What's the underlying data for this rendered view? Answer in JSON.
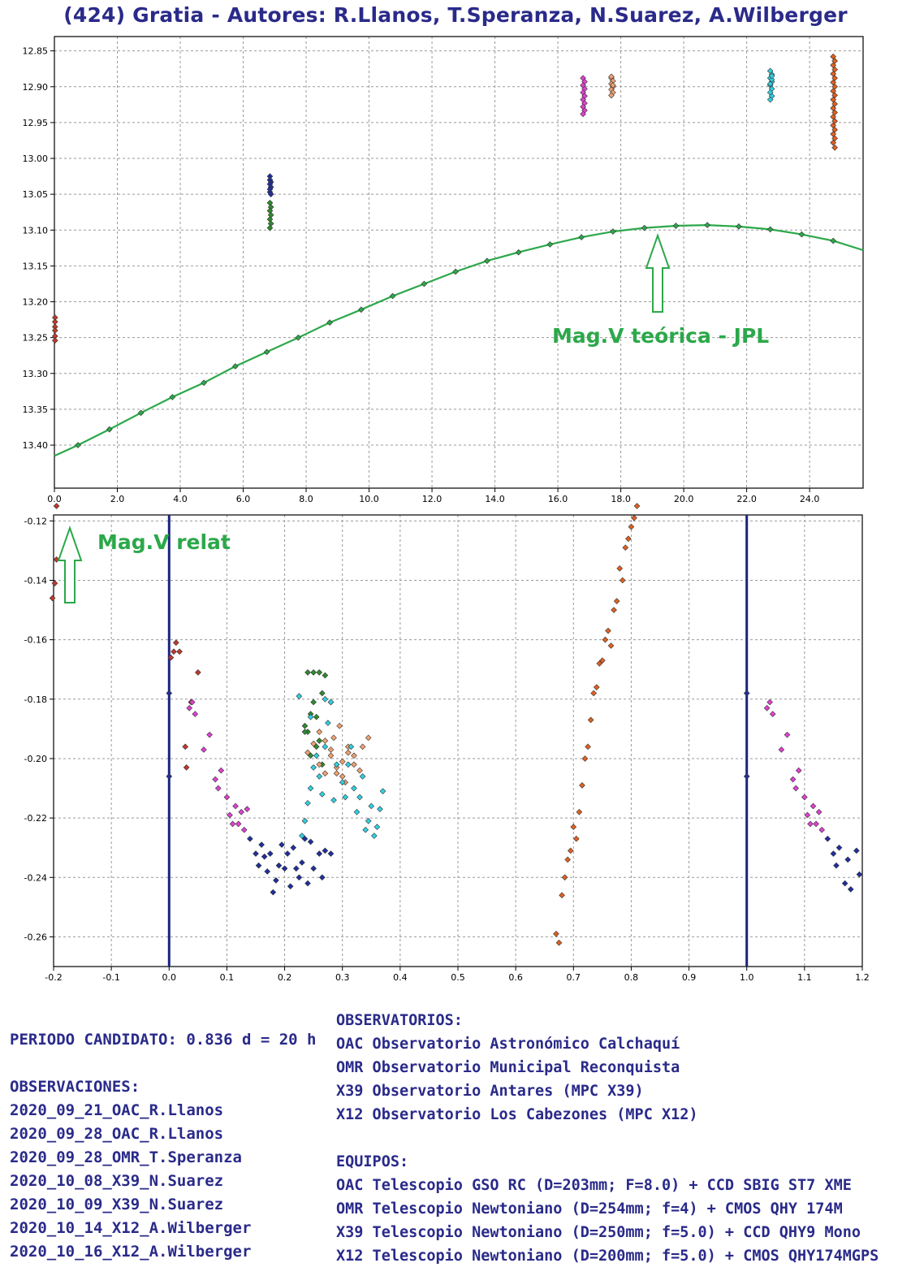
{
  "title": "(424) Gratia - Autores: R.Llanos, T.Speranza, N.Suarez, A.Wilberger",
  "chart_data": [
    {
      "type": "scatter",
      "title": "Mag.V teórica - JPL",
      "xlabel": "",
      "ylabel": "",
      "xlim": [
        0,
        25.7
      ],
      "ylim": [
        12.83,
        13.46
      ],
      "y_inverted": true,
      "xticks": [
        0,
        2,
        4,
        6,
        8,
        10,
        12,
        14,
        16,
        18,
        20,
        22,
        24
      ],
      "xtick_labels": [
        "0.0",
        "2.0",
        "4.0",
        "6.0",
        "8.0",
        "10.0",
        "12.0",
        "14.0",
        "16.0",
        "18.0",
        "20.0",
        "22.0",
        "24.0"
      ],
      "yticks": [
        12.85,
        12.9,
        12.95,
        13.0,
        13.05,
        13.1,
        13.15,
        13.2,
        13.25,
        13.3,
        13.35,
        13.4
      ],
      "ytick_labels": [
        "12.85",
        "12.90",
        "12.95",
        "13.00",
        "13.05",
        "13.10",
        "13.15",
        "13.20",
        "13.25",
        "13.30",
        "13.35",
        "13.40"
      ],
      "annotation": "Mag.V teórica - JPL",
      "theory_curve": {
        "name": "Mag.V teórica - JPL",
        "color": "#2ca84a",
        "x": [
          0.0,
          0.75,
          1.75,
          2.75,
          3.75,
          4.75,
          5.75,
          6.75,
          7.75,
          8.75,
          9.75,
          10.75,
          11.75,
          12.75,
          13.75,
          14.75,
          15.75,
          16.75,
          17.75,
          18.75,
          19.75,
          20.75,
          21.75,
          22.75,
          23.75,
          24.75,
          25.7
        ],
        "y": [
          13.415,
          13.4,
          13.378,
          13.355,
          13.333,
          13.313,
          13.29,
          13.27,
          13.25,
          13.229,
          13.211,
          13.192,
          13.175,
          13.158,
          13.143,
          13.131,
          13.12,
          13.11,
          13.102,
          13.097,
          13.094,
          13.093,
          13.095,
          13.099,
          13.106,
          13.115,
          13.128
        ],
        "marked": [
          false,
          true,
          true,
          true,
          true,
          true,
          true,
          true,
          true,
          true,
          true,
          true,
          true,
          true,
          true,
          true,
          true,
          true,
          true,
          true,
          true,
          true,
          true,
          true,
          true,
          true,
          false
        ]
      },
      "series": [
        {
          "name": "2020_09_21_OAC_R.Llanos",
          "color": "#c0392b",
          "x": [
            0.02,
            0.02,
            0.02,
            0.02,
            0.02,
            0.02
          ],
          "y": [
            13.222,
            13.228,
            13.235,
            13.24,
            13.248,
            13.254
          ]
        },
        {
          "name": "2020_09_28_OAC_R.Llanos",
          "color": "#1f2ea0",
          "x": [
            6.85,
            6.85,
            6.88,
            6.85,
            6.88,
            6.85,
            6.85,
            6.88
          ],
          "y": [
            13.025,
            13.03,
            13.033,
            13.036,
            13.04,
            13.043,
            13.047,
            13.05
          ]
        },
        {
          "name": "2020_09_28_OMR_T.Speranza",
          "color": "#2e8b2e",
          "x": [
            6.85,
            6.88,
            6.85,
            6.88,
            6.85,
            6.88,
            6.85
          ],
          "y": [
            13.062,
            13.068,
            13.073,
            13.079,
            13.085,
            13.091,
            13.097
          ]
        },
        {
          "name": "2020_10_08_X39_N.Suarez",
          "color": "#e040d0",
          "x": [
            16.8,
            16.85,
            16.8,
            16.85,
            16.8,
            16.85,
            16.8,
            16.85,
            16.8,
            16.85,
            16.8
          ],
          "y": [
            12.888,
            12.893,
            12.898,
            12.903,
            12.908,
            12.913,
            12.918,
            12.923,
            12.928,
            12.933,
            12.938
          ]
        },
        {
          "name": "2020_10_09_X39_N.Suarez",
          "color": "#f0a070",
          "x": [
            17.7,
            17.75,
            17.7,
            17.75,
            17.7,
            17.75,
            17.7,
            17.75,
            17.7
          ],
          "y": [
            12.888,
            12.892,
            12.896,
            12.9,
            12.904,
            12.908,
            12.912,
            12.898,
            12.886
          ]
        },
        {
          "name": "2020_10_14_X12_A.Wilberger",
          "color": "#30d0e0",
          "x": [
            22.75,
            22.8,
            22.75,
            22.8,
            22.75,
            22.8,
            22.75,
            22.8,
            22.75,
            22.8,
            22.75,
            22.8
          ],
          "y": [
            12.878,
            12.883,
            12.888,
            12.893,
            12.898,
            12.903,
            12.908,
            12.913,
            12.918,
            12.89,
            12.896,
            12.885
          ]
        },
        {
          "name": "2020_10_16_X12_A.Wilberger",
          "color": "#e06020",
          "x": [
            24.75,
            24.8,
            24.75,
            24.8,
            24.75,
            24.8,
            24.75,
            24.8,
            24.75,
            24.8,
            24.75,
            24.8,
            24.75,
            24.8,
            24.75,
            24.8,
            24.75,
            24.8,
            24.75,
            24.8,
            24.75,
            24.8
          ],
          "y": [
            12.858,
            12.864,
            12.87,
            12.876,
            12.882,
            12.888,
            12.894,
            12.9,
            12.906,
            12.912,
            12.918,
            12.924,
            12.93,
            12.936,
            12.942,
            12.948,
            12.954,
            12.96,
            12.966,
            12.972,
            12.978,
            12.985
          ]
        }
      ]
    },
    {
      "type": "scatter",
      "title": "Mag.V relat",
      "xlabel": "",
      "ylabel": "",
      "xlim": [
        -0.2,
        1.2
      ],
      "ylim": [
        -0.27,
        -0.118
      ],
      "y_inverted": false,
      "xticks": [
        -0.2,
        -0.1,
        0.0,
        0.1,
        0.2,
        0.3,
        0.4,
        0.5,
        0.6,
        0.7,
        0.8,
        0.9,
        1.0,
        1.1,
        1.2
      ],
      "xtick_labels": [
        "-0.2",
        "-0.1",
        "0.0",
        "0.1",
        "0.2",
        "0.3",
        "0.4",
        "0.5",
        "0.6",
        "0.7",
        "0.8",
        "0.9",
        "1.0",
        "1.1",
        "1.2"
      ],
      "yticks": [
        -0.26,
        -0.24,
        -0.22,
        -0.2,
        -0.18,
        -0.16,
        -0.14,
        -0.12
      ],
      "ytick_labels": [
        "-0.26",
        "-0.24",
        "-0.22",
        "-0.20",
        "-0.18",
        "-0.16",
        "-0.14",
        "-0.12"
      ],
      "annotation": "Mag.V relat",
      "vertical_lines": [
        0.0,
        1.0
      ],
      "period": "0.836 d = 20 h",
      "series": [
        {
          "name": "2020_09_21_OAC_R.Llanos",
          "color": "#c0392b",
          "x": [
            -0.195,
            -0.198,
            -0.202,
            -0.195,
            0.003,
            0.008,
            0.012,
            0.018,
            0.028,
            0.03,
            0.038,
            0.05
          ],
          "y": [
            -0.133,
            -0.141,
            -0.146,
            -0.115,
            -0.166,
            -0.164,
            -0.161,
            -0.164,
            -0.196,
            -0.203,
            -0.181,
            -0.171
          ]
        },
        {
          "name": "2020_09_28_OAC_R.Llanos",
          "color": "#1f2ea0",
          "x": [
            0.0,
            0.0,
            0.14,
            0.15,
            0.155,
            0.16,
            0.165,
            0.17,
            0.175,
            0.18,
            0.185,
            0.19,
            0.195,
            0.2,
            0.205,
            0.21,
            0.215,
            0.22,
            0.225,
            0.23,
            0.235,
            0.24,
            0.245,
            0.25,
            0.26,
            0.265,
            0.27,
            0.28,
            1.0,
            1.0,
            1.14,
            1.15,
            1.155,
            1.16,
            1.17,
            1.175,
            1.18,
            1.19,
            1.195
          ],
          "y": [
            -0.206,
            -0.178,
            -0.227,
            -0.232,
            -0.236,
            -0.229,
            -0.233,
            -0.238,
            -0.232,
            -0.245,
            -0.241,
            -0.236,
            -0.229,
            -0.237,
            -0.232,
            -0.243,
            -0.23,
            -0.237,
            -0.24,
            -0.235,
            -0.227,
            -0.242,
            -0.228,
            -0.237,
            -0.232,
            -0.24,
            -0.231,
            -0.232,
            -0.206,
            -0.178,
            -0.227,
            -0.232,
            -0.236,
            -0.23,
            -0.242,
            -0.234,
            -0.244,
            -0.231,
            -0.239
          ]
        },
        {
          "name": "2020_09_28_OMR_T.Speranza",
          "color": "#2e8b2e",
          "x": [
            0.235,
            0.24,
            0.245,
            0.25,
            0.255,
            0.26,
            0.265,
            0.24,
            0.25,
            0.26,
            0.27,
            0.245,
            0.255,
            0.265,
            0.235,
            0.28
          ],
          "y": [
            -0.189,
            -0.191,
            -0.185,
            -0.181,
            -0.196,
            -0.194,
            -0.178,
            -0.171,
            -0.171,
            -0.171,
            -0.172,
            -0.199,
            -0.186,
            -0.202,
            -0.191,
            -0.181
          ]
        },
        {
          "name": "2020_10_08_X39_N.Suarez",
          "color": "#e040d0",
          "x": [
            0.035,
            0.04,
            0.045,
            0.06,
            0.07,
            0.08,
            0.085,
            0.09,
            0.1,
            0.105,
            0.11,
            0.115,
            0.12,
            0.125,
            0.13,
            0.135,
            1.035,
            1.04,
            1.045,
            1.06,
            1.07,
            1.08,
            1.085,
            1.09,
            1.1,
            1.105,
            1.11,
            1.115,
            1.12,
            1.125,
            1.13
          ],
          "y": [
            -0.183,
            -0.181,
            -0.185,
            -0.197,
            -0.192,
            -0.207,
            -0.21,
            -0.204,
            -0.213,
            -0.219,
            -0.222,
            -0.216,
            -0.222,
            -0.218,
            -0.224,
            -0.217,
            -0.183,
            -0.181,
            -0.185,
            -0.197,
            -0.192,
            -0.207,
            -0.21,
            -0.204,
            -0.213,
            -0.219,
            -0.222,
            -0.216,
            -0.222,
            -0.218,
            -0.224
          ]
        },
        {
          "name": "2020_10_09_X39_N.Suarez",
          "color": "#f0a070",
          "x": [
            0.24,
            0.25,
            0.26,
            0.27,
            0.28,
            0.285,
            0.29,
            0.295,
            0.3,
            0.305,
            0.31,
            0.32,
            0.33,
            0.335,
            0.345,
            0.26,
            0.27,
            0.28,
            0.29,
            0.3,
            0.31,
            0.32
          ],
          "y": [
            -0.198,
            -0.195,
            -0.202,
            -0.205,
            -0.199,
            -0.193,
            -0.205,
            -0.189,
            -0.201,
            -0.208,
            -0.196,
            -0.202,
            -0.204,
            -0.196,
            -0.193,
            -0.191,
            -0.194,
            -0.197,
            -0.203,
            -0.206,
            -0.198,
            -0.199
          ]
        },
        {
          "name": "2020_10_14_X12_A.Wilberger",
          "color": "#30d0e0",
          "x": [
            0.225,
            0.23,
            0.235,
            0.24,
            0.245,
            0.25,
            0.255,
            0.26,
            0.265,
            0.27,
            0.275,
            0.28,
            0.285,
            0.29,
            0.3,
            0.305,
            0.31,
            0.315,
            0.32,
            0.325,
            0.33,
            0.335,
            0.34,
            0.345,
            0.35,
            0.355,
            0.36,
            0.365,
            0.37,
            0.245,
            0.27
          ],
          "y": [
            -0.179,
            -0.226,
            -0.221,
            -0.215,
            -0.21,
            -0.203,
            -0.199,
            -0.206,
            -0.212,
            -0.196,
            -0.188,
            -0.181,
            -0.214,
            -0.202,
            -0.208,
            -0.213,
            -0.202,
            -0.196,
            -0.21,
            -0.218,
            -0.213,
            -0.206,
            -0.224,
            -0.221,
            -0.216,
            -0.226,
            -0.223,
            -0.217,
            -0.211,
            -0.186,
            -0.18
          ]
        },
        {
          "name": "2020_10_16_X12_A.Wilberger",
          "color": "#e06020",
          "x": [
            0.67,
            0.675,
            0.68,
            0.685,
            0.69,
            0.695,
            0.7,
            0.705,
            0.71,
            0.715,
            0.72,
            0.725,
            0.73,
            0.735,
            0.74,
            0.745,
            0.75,
            0.755,
            0.76,
            0.765,
            0.77,
            0.775,
            0.78,
            0.785,
            0.79,
            0.795,
            0.8,
            0.805,
            0.81
          ],
          "y": [
            -0.259,
            -0.262,
            -0.246,
            -0.24,
            -0.234,
            -0.231,
            -0.223,
            -0.227,
            -0.218,
            -0.209,
            -0.2,
            -0.196,
            -0.187,
            -0.178,
            -0.176,
            -0.168,
            -0.167,
            -0.16,
            -0.157,
            -0.162,
            -0.15,
            -0.147,
            -0.136,
            -0.14,
            -0.129,
            -0.126,
            -0.122,
            -0.119,
            -0.115
          ]
        }
      ]
    }
  ],
  "info": {
    "period": "PERIODO CANDIDATO: 0.836 d = 20 h",
    "observations_header": "OBSERVACIONES:",
    "observations": [
      "2020_09_21_OAC_R.Llanos",
      "2020_09_28_OAC_R.Llanos",
      "2020_09_28_OMR_T.Speranza",
      "2020_10_08_X39_N.Suarez",
      "2020_10_09_X39_N.Suarez",
      "2020_10_14_X12_A.Wilberger",
      "2020_10_16_X12_A.Wilberger"
    ],
    "observatories_header": "OBSERVATORIOS:",
    "observatories": [
      "OAC Observatorio Astronómico Calchaquí",
      "OMR Observatorio Municipal Reconquista",
      "X39 Observatorio Antares (MPC X39)",
      "X12 Observatorio Los Cabezones (MPC X12)"
    ],
    "equipment_header": "EQUIPOS:",
    "equipment": [
      "OAC Telescopio GSO RC (D=203mm; F=8.0) + CCD SBIG ST7 XME",
      "OMR Telescopio Newtoniano (D=254mm; f=4) + CMOS QHY 174M",
      "X39 Telescopio Newtoniano (D=250mm; f=5.0) + CCD QHY9 Mono",
      "X12 Telescopio Newtoniano (D=200mm; f=5.0) + CMOS QHY174MGPS"
    ]
  }
}
